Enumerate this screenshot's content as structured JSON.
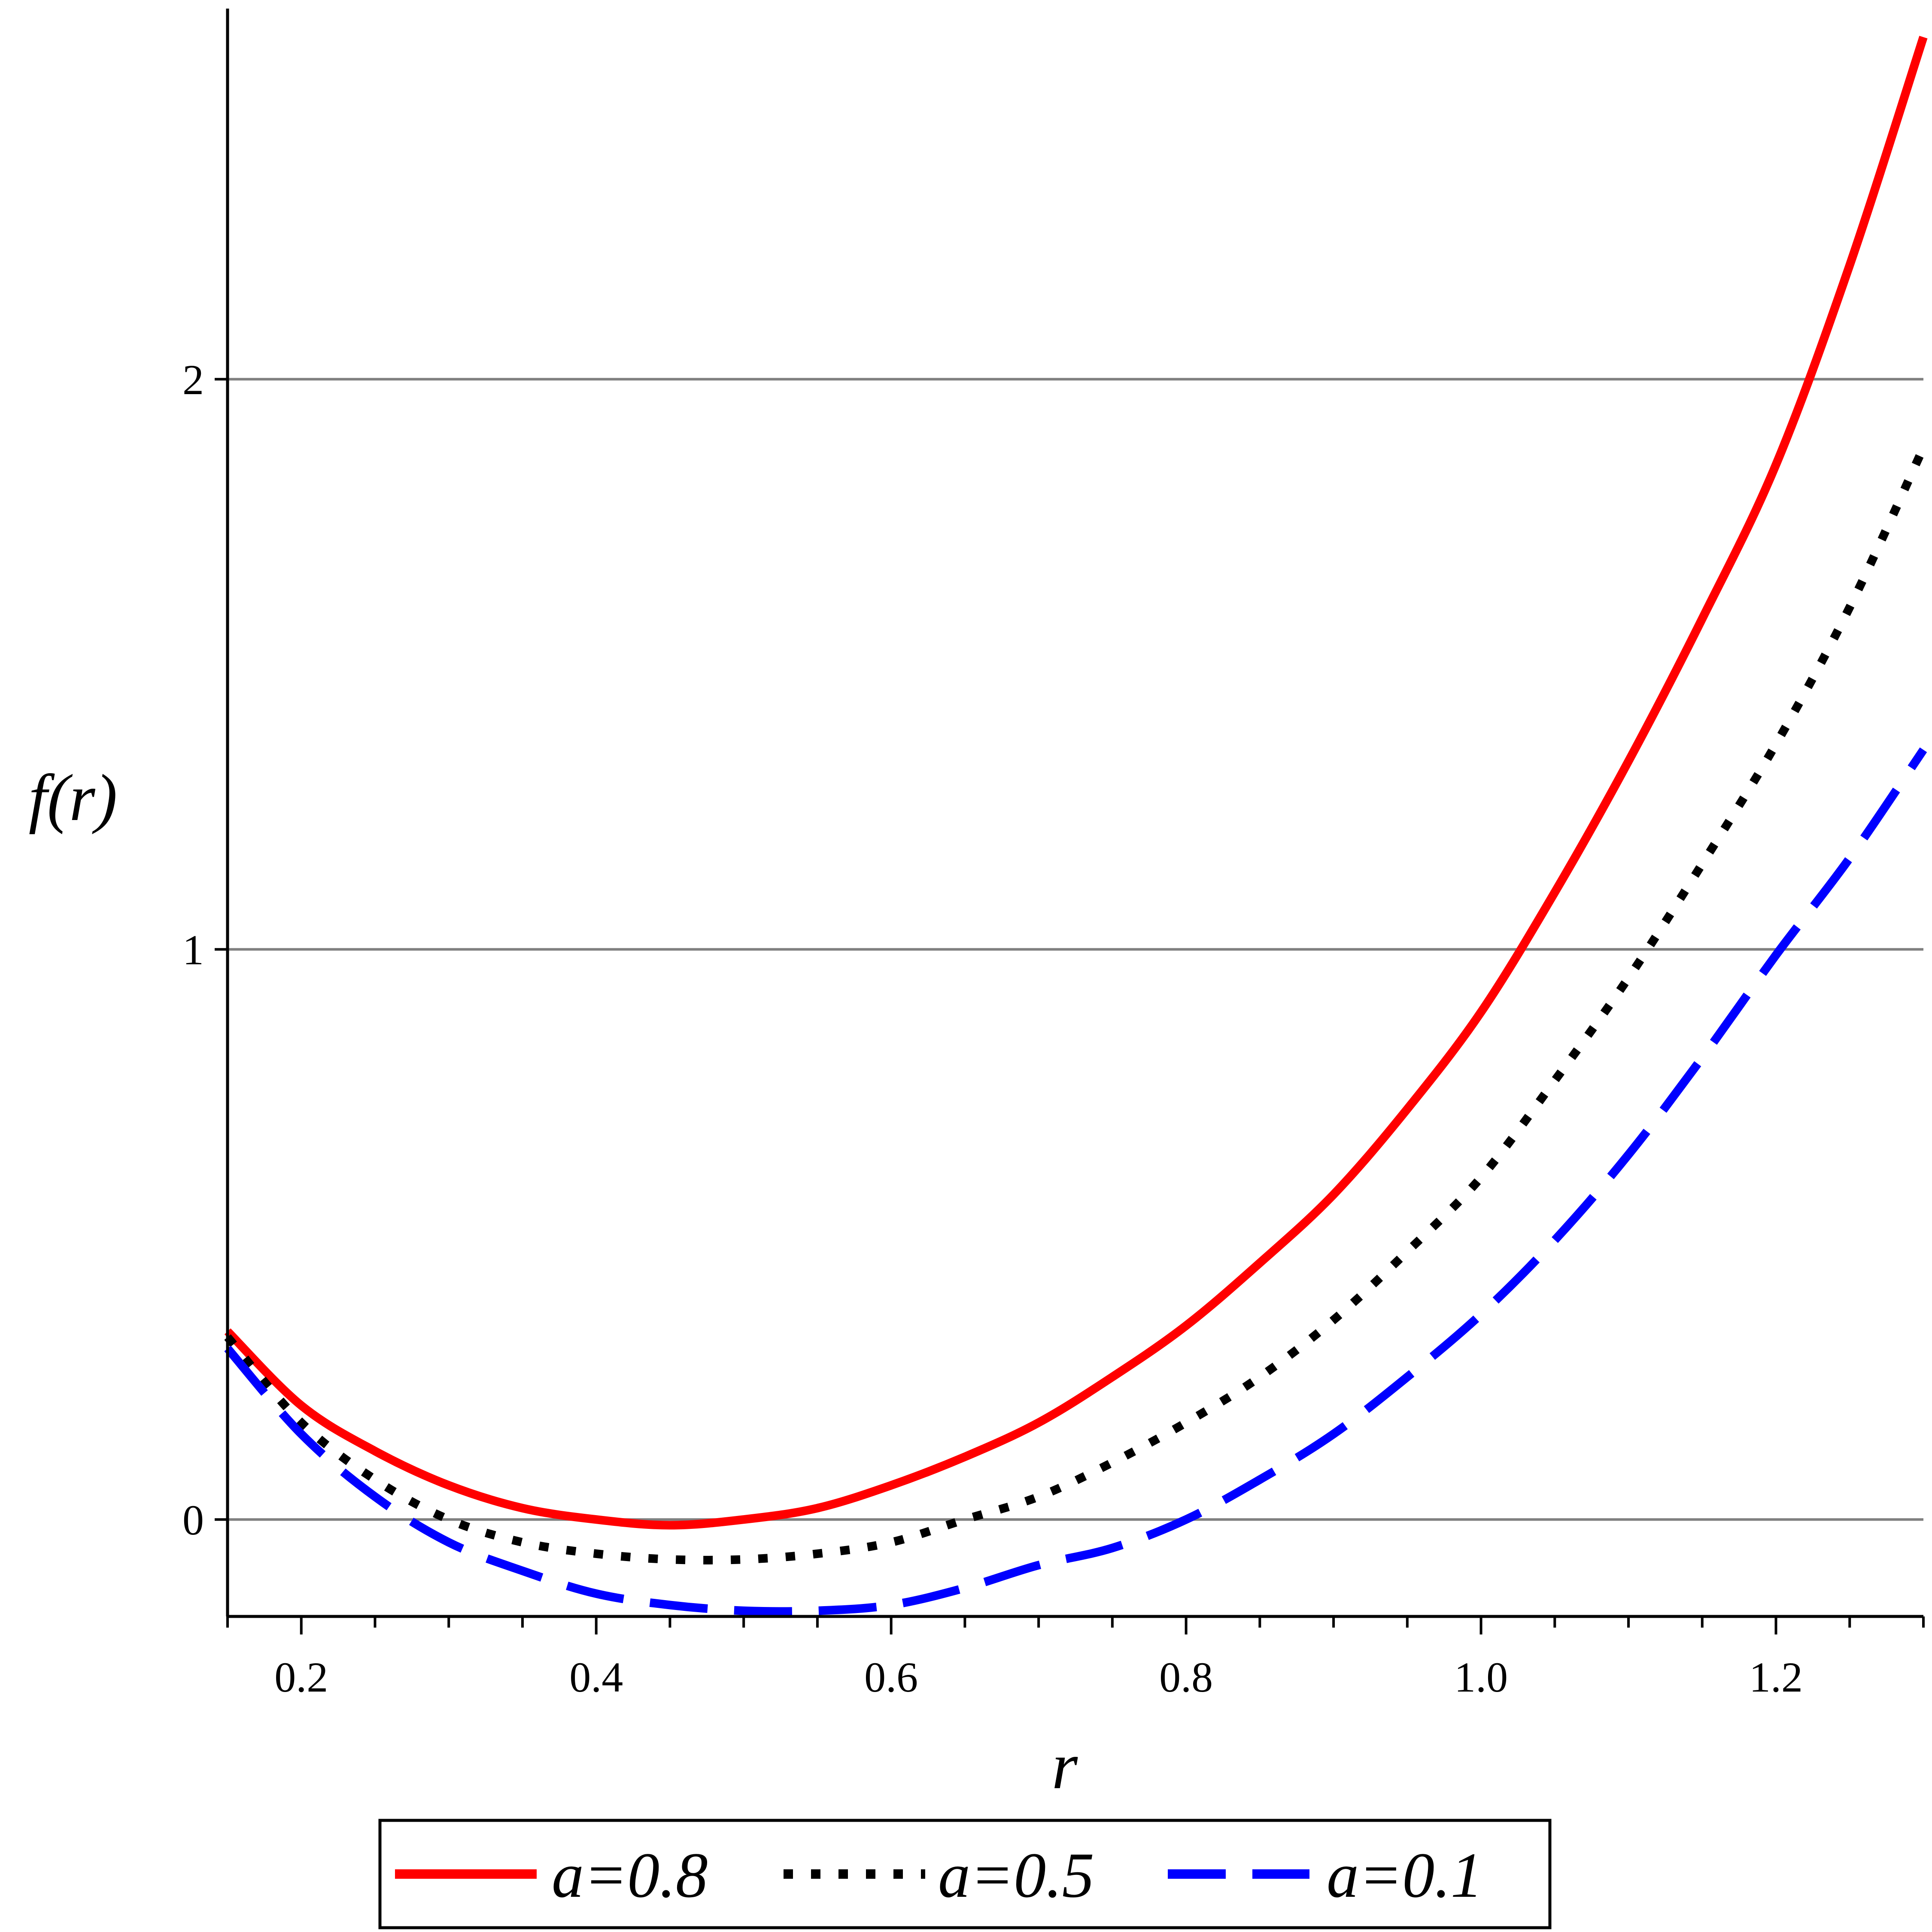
{
  "chart_data": {
    "type": "line",
    "title": "",
    "xlabel": "r",
    "ylabel": "f(r)",
    "xlim": [
      0.15,
      1.3
    ],
    "ylim": [
      -0.17,
      2.65
    ],
    "x_ticks": [
      0.2,
      0.4,
      0.6,
      0.8,
      1.0,
      1.2
    ],
    "x_tick_labels": [
      "0.2",
      "0.4",
      "0.6",
      "0.8",
      "1.0",
      "1.2"
    ],
    "y_ticks": [
      0,
      1,
      2
    ],
    "y_tick_labels": [
      "0",
      "1",
      "2"
    ],
    "grid": "horizontal",
    "legend_position": "bottom",
    "series": [
      {
        "name": "a=0.8",
        "color": "#ff0000",
        "style": "solid",
        "x": [
          0.15,
          0.2,
          0.25,
          0.3,
          0.35,
          0.4,
          0.45,
          0.5,
          0.55,
          0.6,
          0.65,
          0.7,
          0.75,
          0.8,
          0.85,
          0.9,
          0.95,
          1.0,
          1.05,
          1.1,
          1.15,
          1.2,
          1.25,
          1.3
        ],
        "y": [
          0.33,
          0.2,
          0.12,
          0.06,
          0.02,
          0.0,
          -0.01,
          0.0,
          0.02,
          0.06,
          0.11,
          0.17,
          0.25,
          0.34,
          0.45,
          0.57,
          0.72,
          0.89,
          1.1,
          1.33,
          1.58,
          1.85,
          2.2,
          2.6
        ]
      },
      {
        "name": "a=0.5",
        "color": "#000000",
        "style": "dotted",
        "x": [
          0.15,
          0.2,
          0.25,
          0.3,
          0.35,
          0.4,
          0.45,
          0.5,
          0.55,
          0.6,
          0.65,
          0.7,
          0.75,
          0.8,
          0.85,
          0.9,
          0.95,
          1.0,
          1.05,
          1.1,
          1.15,
          1.2,
          1.25,
          1.3
        ],
        "y": [
          0.32,
          0.17,
          0.07,
          0.0,
          -0.04,
          -0.06,
          -0.07,
          -0.07,
          -0.06,
          -0.04,
          0.0,
          0.04,
          0.1,
          0.17,
          0.25,
          0.35,
          0.47,
          0.6,
          0.77,
          0.95,
          1.15,
          1.36,
          1.6,
          1.88
        ]
      },
      {
        "name": "a=0.1",
        "color": "#0000ff",
        "style": "dashed",
        "x": [
          0.15,
          0.2,
          0.25,
          0.3,
          0.35,
          0.4,
          0.45,
          0.5,
          0.55,
          0.6,
          0.65,
          0.7,
          0.75,
          0.8,
          0.85,
          0.9,
          0.95,
          1.0,
          1.05,
          1.1,
          1.15,
          1.2,
          1.25,
          1.3
        ],
        "y": [
          0.3,
          0.15,
          0.04,
          -0.04,
          -0.09,
          -0.13,
          -0.15,
          -0.16,
          -0.16,
          -0.15,
          -0.12,
          -0.08,
          -0.05,
          0.0,
          0.07,
          0.15,
          0.25,
          0.36,
          0.49,
          0.64,
          0.81,
          0.99,
          1.16,
          1.35
        ]
      }
    ]
  }
}
